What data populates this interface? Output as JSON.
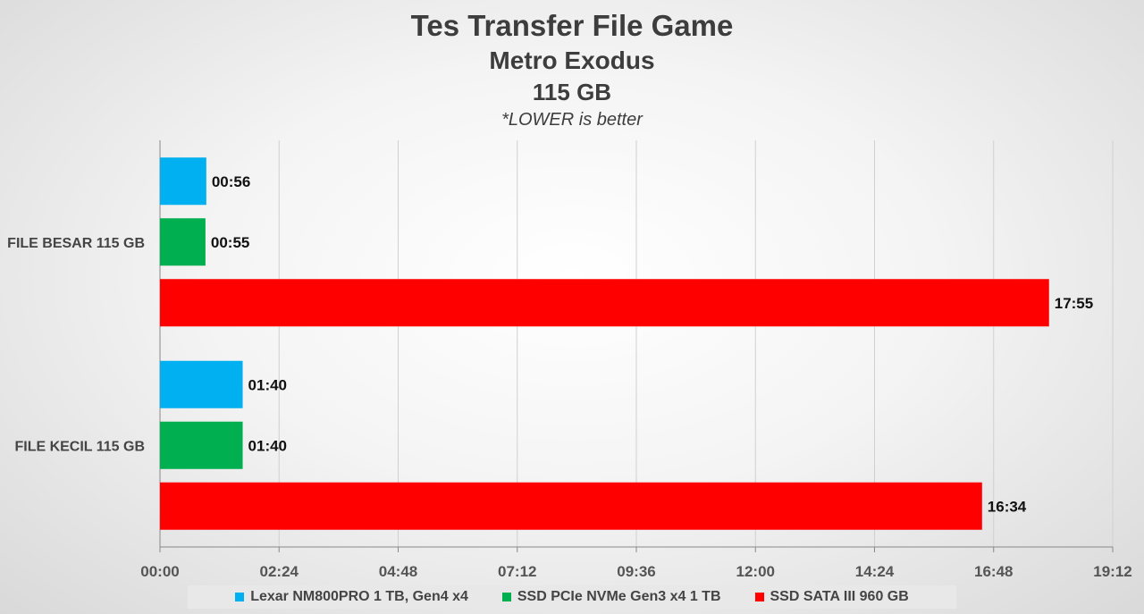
{
  "chart_data": {
    "type": "bar",
    "orientation": "horizontal",
    "title": "Tes Transfer File Game",
    "subtitle": "Metro Exodus",
    "subtitle2": "115 GB",
    "note": "*LOWER is better",
    "categories": [
      "FILE BESAR 115 GB",
      "FILE KECIL 115 GB"
    ],
    "series": [
      {
        "name": "Lexar NM800PRO 1 TB, Gen4 x4",
        "color": "#00b0f0",
        "values": [
          56,
          100
        ],
        "labels": [
          "00:56",
          "01:40"
        ]
      },
      {
        "name": "SSD PCIe NVMe Gen3 x4 1 TB",
        "color": "#00b050",
        "values": [
          55,
          100
        ],
        "labels": [
          "00:55",
          "01:40"
        ]
      },
      {
        "name": "SSD SATA III 960 GB",
        "color": "#ff0000",
        "values": [
          1075,
          994
        ],
        "labels": [
          "17:55",
          "16:34"
        ]
      }
    ],
    "xlim": [
      0,
      1152
    ],
    "xticks": [
      0,
      144,
      288,
      432,
      576,
      720,
      864,
      1008,
      1152
    ],
    "xtick_labels": [
      "00:00",
      "02:24",
      "04:48",
      "07:12",
      "09:36",
      "12:00",
      "14:24",
      "16:48",
      "19:12"
    ],
    "grid": true,
    "legend_position": "bottom"
  }
}
